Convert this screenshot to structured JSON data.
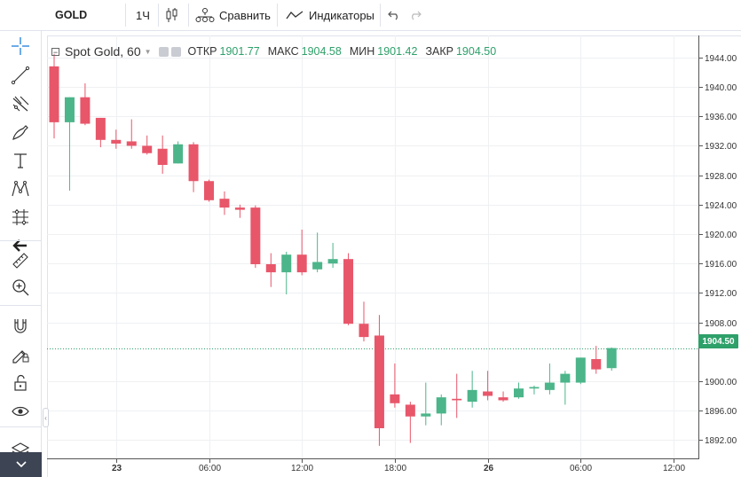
{
  "toolbar": {
    "symbol": "GOLD",
    "interval": "1Ч",
    "compare_label": "Сравнить",
    "indicators_label": "Индикаторы"
  },
  "legend": {
    "title": "Spot Gold, 60",
    "open_label": "ОТКР",
    "open_value": "1901.77",
    "high_label": "МАКС",
    "high_value": "1904.58",
    "low_label": "МИН",
    "low_value": "1901.42",
    "close_label": "ЗАКР",
    "close_value": "1904.50"
  },
  "last_price_label": "1904.50",
  "colors": {
    "up": "#4cb58a",
    "down": "#e8566a",
    "grid": "#eef0f3",
    "axis": "#555555"
  },
  "tools": [
    "crosshair-icon",
    "trend-line-icon",
    "pitchfork-icon",
    "brush-icon",
    "text-icon",
    "pattern-icon",
    "prediction-icon",
    "back-arrow-icon",
    "ruler-icon",
    "zoom-in-icon",
    "magnet-icon",
    "lock-drawing-icon",
    "unlock-icon",
    "eye-icon",
    "layers-icon"
  ],
  "chart_data": {
    "type": "candlestick",
    "x_tick_labels": [
      "23",
      "06:00",
      "12:00",
      "18:00",
      "26",
      "06:00",
      "12:00"
    ],
    "y_tick_labels": [
      "1944.00",
      "1940.00",
      "1936.00",
      "1932.00",
      "1928.00",
      "1924.00",
      "1920.00",
      "1916.00",
      "1912.00",
      "1908.00",
      "1900.00",
      "1896.00",
      "1892.00"
    ],
    "ylim": [
      1889.5,
      1947.0
    ],
    "last_price": 1904.5,
    "candles": [
      {
        "o": 1942.8,
        "h": 1944.5,
        "l": 1933.0,
        "c": 1935.2
      },
      {
        "o": 1935.2,
        "h": 1938.6,
        "l": 1925.9,
        "c": 1938.6
      },
      {
        "o": 1938.6,
        "h": 1940.5,
        "l": 1934.8,
        "c": 1935.0
      },
      {
        "o": 1935.8,
        "h": 1935.8,
        "l": 1931.8,
        "c": 1932.8
      },
      {
        "o": 1932.8,
        "h": 1934.2,
        "l": 1931.6,
        "c": 1932.3
      },
      {
        "o": 1932.6,
        "h": 1935.6,
        "l": 1931.6,
        "c": 1932.0
      },
      {
        "o": 1932.0,
        "h": 1933.4,
        "l": 1930.8,
        "c": 1931.0
      },
      {
        "o": 1931.6,
        "h": 1933.4,
        "l": 1928.2,
        "c": 1929.4
      },
      {
        "o": 1929.6,
        "h": 1932.6,
        "l": 1929.6,
        "c": 1932.2
      },
      {
        "o": 1932.2,
        "h": 1932.5,
        "l": 1925.7,
        "c": 1927.2
      },
      {
        "o": 1927.2,
        "h": 1927.4,
        "l": 1924.4,
        "c": 1924.6
      },
      {
        "o": 1924.8,
        "h": 1925.8,
        "l": 1922.6,
        "c": 1923.6
      },
      {
        "o": 1923.6,
        "h": 1924.0,
        "l": 1922.2,
        "c": 1923.3
      },
      {
        "o": 1923.6,
        "h": 1923.9,
        "l": 1915.4,
        "c": 1915.9
      },
      {
        "o": 1915.9,
        "h": 1917.4,
        "l": 1912.8,
        "c": 1914.8
      },
      {
        "o": 1914.8,
        "h": 1917.6,
        "l": 1911.8,
        "c": 1917.2
      },
      {
        "o": 1917.2,
        "h": 1920.6,
        "l": 1914.4,
        "c": 1914.8
      },
      {
        "o": 1915.2,
        "h": 1920.2,
        "l": 1914.8,
        "c": 1916.2
      },
      {
        "o": 1916.0,
        "h": 1918.8,
        "l": 1915.4,
        "c": 1916.6
      },
      {
        "o": 1916.6,
        "h": 1917.4,
        "l": 1907.6,
        "c": 1907.8
      },
      {
        "o": 1907.8,
        "h": 1910.8,
        "l": 1905.4,
        "c": 1906.0
      },
      {
        "o": 1906.2,
        "h": 1909.0,
        "l": 1891.2,
        "c": 1893.6
      },
      {
        "o": 1898.2,
        "h": 1902.4,
        "l": 1896.4,
        "c": 1897.0
      },
      {
        "o": 1896.8,
        "h": 1897.2,
        "l": 1891.6,
        "c": 1895.2
      },
      {
        "o": 1895.2,
        "h": 1899.8,
        "l": 1894.0,
        "c": 1895.6
      },
      {
        "o": 1895.6,
        "h": 1898.2,
        "l": 1894.0,
        "c": 1897.8
      },
      {
        "o": 1897.6,
        "h": 1901.0,
        "l": 1895.0,
        "c": 1897.4
      },
      {
        "o": 1897.2,
        "h": 1901.4,
        "l": 1896.4,
        "c": 1898.8
      },
      {
        "o": 1898.6,
        "h": 1901.4,
        "l": 1897.4,
        "c": 1898.0
      },
      {
        "o": 1897.8,
        "h": 1898.6,
        "l": 1897.2,
        "c": 1897.4
      },
      {
        "o": 1897.8,
        "h": 1899.8,
        "l": 1897.6,
        "c": 1899.0
      },
      {
        "o": 1899.0,
        "h": 1899.4,
        "l": 1898.2,
        "c": 1899.2
      },
      {
        "o": 1898.8,
        "h": 1902.4,
        "l": 1898.2,
        "c": 1899.8
      },
      {
        "o": 1899.8,
        "h": 1901.4,
        "l": 1896.8,
        "c": 1901.0
      },
      {
        "o": 1899.8,
        "h": 1903.2,
        "l": 1899.6,
        "c": 1903.2
      },
      {
        "o": 1903.0,
        "h": 1904.8,
        "l": 1901.0,
        "c": 1901.6
      },
      {
        "o": 1901.77,
        "h": 1904.58,
        "l": 1901.42,
        "c": 1904.5
      }
    ]
  }
}
